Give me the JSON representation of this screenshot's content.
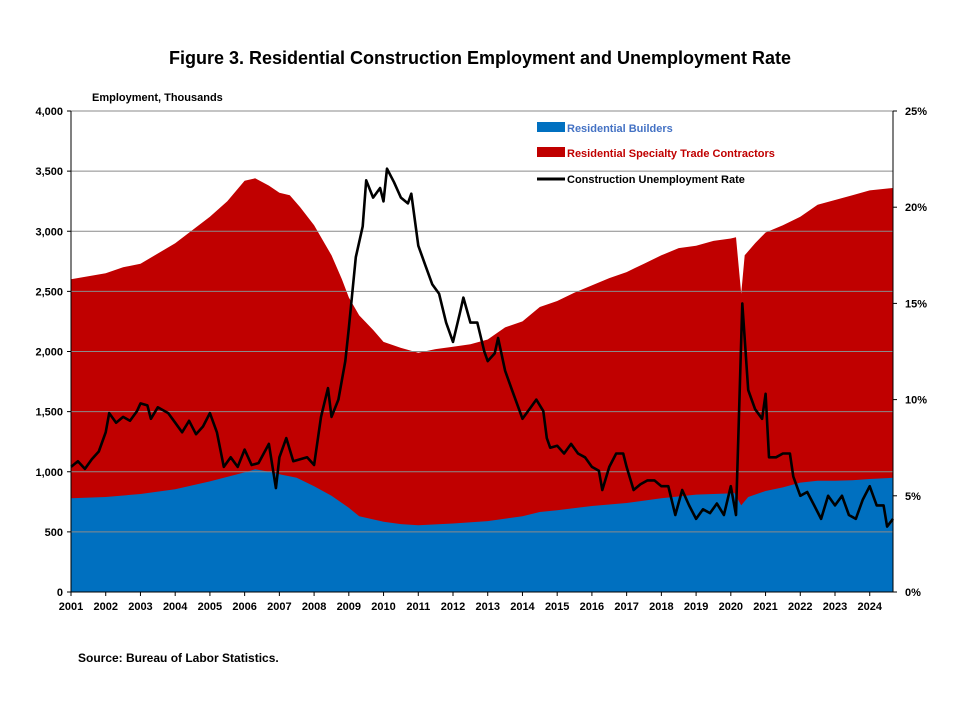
{
  "title": "Figure 3. Residential Construction  Employment and Unemployment Rate",
  "source": "Source: Bureau of Labor Statistics.",
  "chart_data": {
    "type": "area",
    "ylabel_left": "Employment, Thousands",
    "ylim_left": [
      0,
      4000
    ],
    "ylim_right": [
      0,
      25
    ],
    "xlim": [
      2001,
      2024.67
    ],
    "grid": true,
    "legend_position": "top-right",
    "y_ticks_left": [
      "0",
      "500",
      "1,000",
      "1,500",
      "2,000",
      "2,500",
      "3,000",
      "3,500",
      "4,000"
    ],
    "y_ticks_right": [
      "0%",
      "5%",
      "10%",
      "15%",
      "20%",
      "25%"
    ],
    "x_ticks": [
      "2001",
      "2002",
      "2003",
      "2004",
      "2005",
      "2006",
      "2007",
      "2008",
      "2009",
      "2010",
      "2011",
      "2012",
      "2013",
      "2014",
      "2015",
      "2016",
      "2017",
      "2018",
      "2019",
      "2020",
      "2021",
      "2022",
      "2023",
      "2024"
    ],
    "series": [
      {
        "name": "Residential Builders",
        "kind": "area",
        "color": "#0070C0",
        "points": [
          [
            2001,
            780
          ],
          [
            2002,
            790
          ],
          [
            2003,
            815
          ],
          [
            2004,
            855
          ],
          [
            2005,
            920
          ],
          [
            2006,
            995
          ],
          [
            2006.3,
            1020
          ],
          [
            2006.7,
            1000
          ],
          [
            2007,
            980
          ],
          [
            2007.5,
            950
          ],
          [
            2008,
            880
          ],
          [
            2008.5,
            800
          ],
          [
            2009,
            700
          ],
          [
            2009.3,
            630
          ],
          [
            2010,
            585
          ],
          [
            2010.5,
            565
          ],
          [
            2011,
            555
          ],
          [
            2012,
            570
          ],
          [
            2013,
            590
          ],
          [
            2014,
            630
          ],
          [
            2014.5,
            665
          ],
          [
            2015,
            680
          ],
          [
            2016,
            715
          ],
          [
            2017,
            740
          ],
          [
            2018,
            780
          ],
          [
            2019,
            810
          ],
          [
            2020,
            820
          ],
          [
            2020.1,
            825
          ],
          [
            2020.3,
            720
          ],
          [
            2020.5,
            790
          ],
          [
            2021,
            840
          ],
          [
            2021.5,
            870
          ],
          [
            2022,
            910
          ],
          [
            2022.5,
            925
          ],
          [
            2023,
            925
          ],
          [
            2023.5,
            930
          ],
          [
            2024,
            940
          ],
          [
            2024.67,
            950
          ]
        ]
      },
      {
        "name": "Residential Specialty Trade Contractors",
        "kind": "stacked-area-total",
        "color": "#C00000",
        "points": [
          [
            2001,
            2600
          ],
          [
            2002,
            2650
          ],
          [
            2002.5,
            2700
          ],
          [
            2003,
            2730
          ],
          [
            2004,
            2900
          ],
          [
            2005,
            3120
          ],
          [
            2005.5,
            3250
          ],
          [
            2006,
            3420
          ],
          [
            2006.3,
            3440
          ],
          [
            2006.7,
            3380
          ],
          [
            2007,
            3320
          ],
          [
            2007.3,
            3300
          ],
          [
            2007.6,
            3200
          ],
          [
            2008,
            3050
          ],
          [
            2008.5,
            2800
          ],
          [
            2008.8,
            2600
          ],
          [
            2009,
            2450
          ],
          [
            2009.3,
            2300
          ],
          [
            2009.7,
            2180
          ],
          [
            2010,
            2080
          ],
          [
            2010.5,
            2030
          ],
          [
            2011,
            1990
          ],
          [
            2011.5,
            2020
          ],
          [
            2012,
            2040
          ],
          [
            2012.5,
            2060
          ],
          [
            2013,
            2100
          ],
          [
            2013.5,
            2200
          ],
          [
            2014,
            2250
          ],
          [
            2014.5,
            2370
          ],
          [
            2015,
            2420
          ],
          [
            2015.5,
            2490
          ],
          [
            2016,
            2550
          ],
          [
            2016.5,
            2610
          ],
          [
            2017,
            2660
          ],
          [
            2017.5,
            2730
          ],
          [
            2018,
            2800
          ],
          [
            2018.5,
            2860
          ],
          [
            2019,
            2880
          ],
          [
            2019.5,
            2920
          ],
          [
            2020,
            2940
          ],
          [
            2020.15,
            2950
          ],
          [
            2020.3,
            2480
          ],
          [
            2020.4,
            2800
          ],
          [
            2020.7,
            2900
          ],
          [
            2021,
            2990
          ],
          [
            2021.5,
            3050
          ],
          [
            2022,
            3120
          ],
          [
            2022.5,
            3220
          ],
          [
            2023,
            3260
          ],
          [
            2023.5,
            3300
          ],
          [
            2024,
            3340
          ],
          [
            2024.67,
            3360
          ]
        ]
      },
      {
        "name": "Construction Unemployment Rate",
        "kind": "line",
        "axis": "right",
        "color": "#000000",
        "points": [
          [
            2001,
            6.5
          ],
          [
            2001.2,
            6.8
          ],
          [
            2001.4,
            6.4
          ],
          [
            2001.6,
            6.9
          ],
          [
            2001.8,
            7.3
          ],
          [
            2002,
            8.3
          ],
          [
            2002.1,
            9.3
          ],
          [
            2002.3,
            8.8
          ],
          [
            2002.5,
            9.1
          ],
          [
            2002.7,
            8.9
          ],
          [
            2002.9,
            9.4
          ],
          [
            2003,
            9.8
          ],
          [
            2003.2,
            9.7
          ],
          [
            2003.3,
            9.0
          ],
          [
            2003.5,
            9.6
          ],
          [
            2003.8,
            9.3
          ],
          [
            2004,
            8.8
          ],
          [
            2004.2,
            8.3
          ],
          [
            2004.4,
            8.9
          ],
          [
            2004.6,
            8.2
          ],
          [
            2004.8,
            8.6
          ],
          [
            2005,
            9.3
          ],
          [
            2005.2,
            8.3
          ],
          [
            2005.4,
            6.5
          ],
          [
            2005.6,
            7.0
          ],
          [
            2005.8,
            6.5
          ],
          [
            2006,
            7.4
          ],
          [
            2006.2,
            6.6
          ],
          [
            2006.4,
            6.7
          ],
          [
            2006.7,
            7.7
          ],
          [
            2006.9,
            5.4
          ],
          [
            2007,
            7.0
          ],
          [
            2007.2,
            8.0
          ],
          [
            2007.4,
            6.8
          ],
          [
            2007.6,
            6.9
          ],
          [
            2007.8,
            7.0
          ],
          [
            2008,
            6.6
          ],
          [
            2008.2,
            9.1
          ],
          [
            2008.4,
            10.6
          ],
          [
            2008.5,
            9.1
          ],
          [
            2008.7,
            10.0
          ],
          [
            2008.9,
            12.0
          ],
          [
            2009,
            13.7
          ],
          [
            2009.2,
            17.4
          ],
          [
            2009.4,
            19.0
          ],
          [
            2009.5,
            21.4
          ],
          [
            2009.7,
            20.5
          ],
          [
            2009.9,
            21.0
          ],
          [
            2010,
            20.3
          ],
          [
            2010.1,
            22.0
          ],
          [
            2010.3,
            21.3
          ],
          [
            2010.5,
            20.5
          ],
          [
            2010.7,
            20.2
          ],
          [
            2010.8,
            20.7
          ],
          [
            2011,
            18.0
          ],
          [
            2011.2,
            17.0
          ],
          [
            2011.4,
            16.0
          ],
          [
            2011.6,
            15.5
          ],
          [
            2011.8,
            14.0
          ],
          [
            2012,
            13.0
          ],
          [
            2012.2,
            14.5
          ],
          [
            2012.3,
            15.3
          ],
          [
            2012.5,
            14.0
          ],
          [
            2012.7,
            14.0
          ],
          [
            2012.9,
            12.5
          ],
          [
            2013,
            12.0
          ],
          [
            2013.2,
            12.4
          ],
          [
            2013.3,
            13.2
          ],
          [
            2013.5,
            11.5
          ],
          [
            2013.7,
            10.5
          ],
          [
            2013.9,
            9.5
          ],
          [
            2014,
            9.0
          ],
          [
            2014.2,
            9.5
          ],
          [
            2014.4,
            10.0
          ],
          [
            2014.6,
            9.4
          ],
          [
            2014.7,
            8.0
          ],
          [
            2014.8,
            7.5
          ],
          [
            2015,
            7.6
          ],
          [
            2015.2,
            7.2
          ],
          [
            2015.4,
            7.7
          ],
          [
            2015.6,
            7.2
          ],
          [
            2015.8,
            7.0
          ],
          [
            2016,
            6.5
          ],
          [
            2016.2,
            6.3
          ],
          [
            2016.3,
            5.3
          ],
          [
            2016.5,
            6.5
          ],
          [
            2016.7,
            7.2
          ],
          [
            2016.9,
            7.2
          ],
          [
            2017,
            6.5
          ],
          [
            2017.2,
            5.3
          ],
          [
            2017.4,
            5.6
          ],
          [
            2017.6,
            5.8
          ],
          [
            2017.8,
            5.8
          ],
          [
            2018,
            5.5
          ],
          [
            2018.2,
            5.5
          ],
          [
            2018.4,
            4.0
          ],
          [
            2018.6,
            5.3
          ],
          [
            2018.8,
            4.5
          ],
          [
            2019,
            3.8
          ],
          [
            2019.2,
            4.3
          ],
          [
            2019.4,
            4.1
          ],
          [
            2019.6,
            4.6
          ],
          [
            2019.8,
            4.0
          ],
          [
            2020,
            5.5
          ],
          [
            2020.15,
            4.0
          ],
          [
            2020.33,
            15.0
          ],
          [
            2020.5,
            10.5
          ],
          [
            2020.7,
            9.5
          ],
          [
            2020.9,
            9.0
          ],
          [
            2021,
            10.3
          ],
          [
            2021.1,
            7.0
          ],
          [
            2021.3,
            7.0
          ],
          [
            2021.5,
            7.2
          ],
          [
            2021.7,
            7.2
          ],
          [
            2021.8,
            6.0
          ],
          [
            2022,
            5.0
          ],
          [
            2022.2,
            5.2
          ],
          [
            2022.4,
            4.5
          ],
          [
            2022.6,
            3.8
          ],
          [
            2022.8,
            5.0
          ],
          [
            2023,
            4.5
          ],
          [
            2023.2,
            5.0
          ],
          [
            2023.4,
            4.0
          ],
          [
            2023.6,
            3.8
          ],
          [
            2023.8,
            4.8
          ],
          [
            2024,
            5.5
          ],
          [
            2024.2,
            4.5
          ],
          [
            2024.4,
            4.5
          ],
          [
            2024.5,
            3.4
          ],
          [
            2024.67,
            3.8
          ]
        ]
      }
    ]
  }
}
